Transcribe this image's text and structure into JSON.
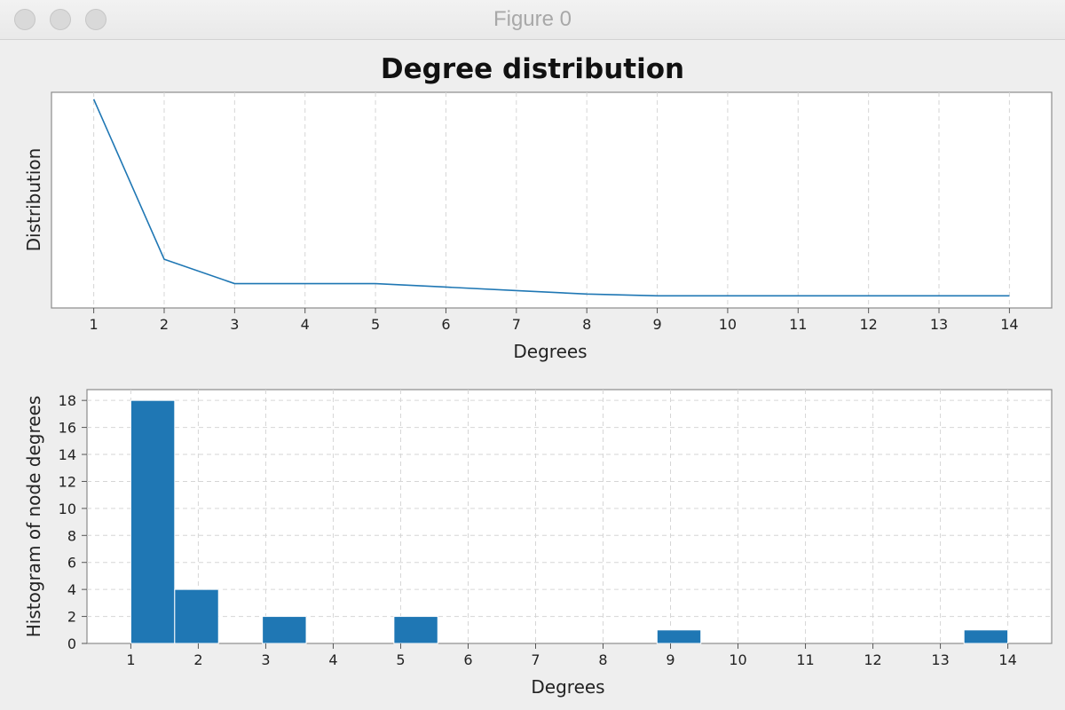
{
  "window": {
    "title": "Figure 0"
  },
  "chart_data": [
    {
      "type": "line",
      "title": "Degree distribution",
      "xlabel": "Degrees",
      "ylabel": "Distribution",
      "x": [
        1,
        2,
        3,
        4,
        5,
        6,
        7,
        8,
        9,
        10,
        11,
        12,
        13,
        14
      ],
      "series": [
        {
          "values": [
            0.6,
            0.14,
            0.07,
            0.07,
            0.07,
            0.06,
            0.05,
            0.04,
            0.035,
            0.035,
            0.035,
            0.035,
            0.035,
            0.035
          ],
          "color": "#1f77b4"
        }
      ],
      "xlim": [
        0.4,
        14.6
      ],
      "ylim": [
        0.0,
        0.62
      ],
      "xticks": [
        1,
        2,
        3,
        4,
        5,
        6,
        7,
        8,
        9,
        10,
        11,
        12,
        13,
        14
      ],
      "yticks_visible": false,
      "grid": "x"
    },
    {
      "type": "bar",
      "xlabel": "Degrees",
      "ylabel": "Histogram of node degrees",
      "bins": [
        {
          "x0": 1.0,
          "x1": 1.65,
          "value": 18
        },
        {
          "x0": 1.65,
          "x1": 2.3,
          "value": 4
        },
        {
          "x0": 2.95,
          "x1": 3.6,
          "value": 2
        },
        {
          "x0": 4.9,
          "x1": 5.55,
          "value": 2
        },
        {
          "x0": 8.8,
          "x1": 9.45,
          "value": 1
        },
        {
          "x0": 13.35,
          "x1": 14.0,
          "value": 1
        }
      ],
      "color": "#1f77b4",
      "xlim": [
        0.35,
        14.65
      ],
      "ylim": [
        0,
        18.8
      ],
      "xticks": [
        1,
        2,
        3,
        4,
        5,
        6,
        7,
        8,
        9,
        10,
        11,
        12,
        13,
        14
      ],
      "yticks": [
        0,
        2,
        4,
        6,
        8,
        10,
        12,
        14,
        16,
        18
      ],
      "grid": "both"
    }
  ]
}
